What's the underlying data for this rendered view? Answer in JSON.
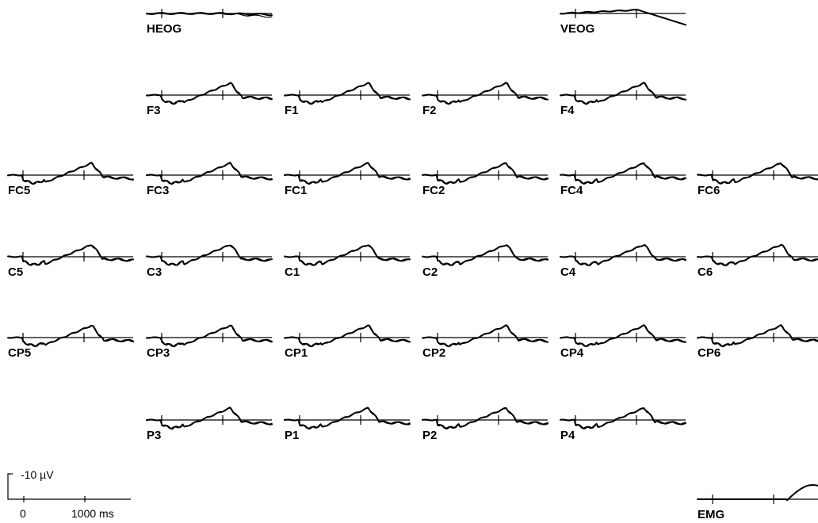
{
  "figure": {
    "channels": [
      {
        "name": "HEOG",
        "shape": "heog"
      },
      {
        "name": "VEOG",
        "shape": "veog"
      },
      {
        "name": "F3",
        "shape": "erp"
      },
      {
        "name": "F1",
        "shape": "erp"
      },
      {
        "name": "F2",
        "shape": "erp"
      },
      {
        "name": "F4",
        "shape": "erp"
      },
      {
        "name": "FC5",
        "shape": "erp"
      },
      {
        "name": "FC3",
        "shape": "erp"
      },
      {
        "name": "FC1",
        "shape": "erp"
      },
      {
        "name": "FC2",
        "shape": "erp"
      },
      {
        "name": "FC4",
        "shape": "erp"
      },
      {
        "name": "FC6",
        "shape": "erp"
      },
      {
        "name": "C5",
        "shape": "erp"
      },
      {
        "name": "C3",
        "shape": "erp"
      },
      {
        "name": "C1",
        "shape": "erp"
      },
      {
        "name": "C2",
        "shape": "erp"
      },
      {
        "name": "C4",
        "shape": "erp"
      },
      {
        "name": "C6",
        "shape": "erp"
      },
      {
        "name": "CP5",
        "shape": "erp"
      },
      {
        "name": "CP3",
        "shape": "erp"
      },
      {
        "name": "CP1",
        "shape": "erp"
      },
      {
        "name": "CP2",
        "shape": "erp"
      },
      {
        "name": "CP4",
        "shape": "erp"
      },
      {
        "name": "CP6",
        "shape": "erp"
      },
      {
        "name": "P3",
        "shape": "erp"
      },
      {
        "name": "P1",
        "shape": "erp"
      },
      {
        "name": "P2",
        "shape": "erp"
      },
      {
        "name": "P4",
        "shape": "erp"
      },
      {
        "name": "EMG",
        "shape": "emg"
      }
    ],
    "scale": {
      "amplitude_label": "-10 µV",
      "time_start_label": "0",
      "time_end_label": "1000 ms"
    }
  }
}
